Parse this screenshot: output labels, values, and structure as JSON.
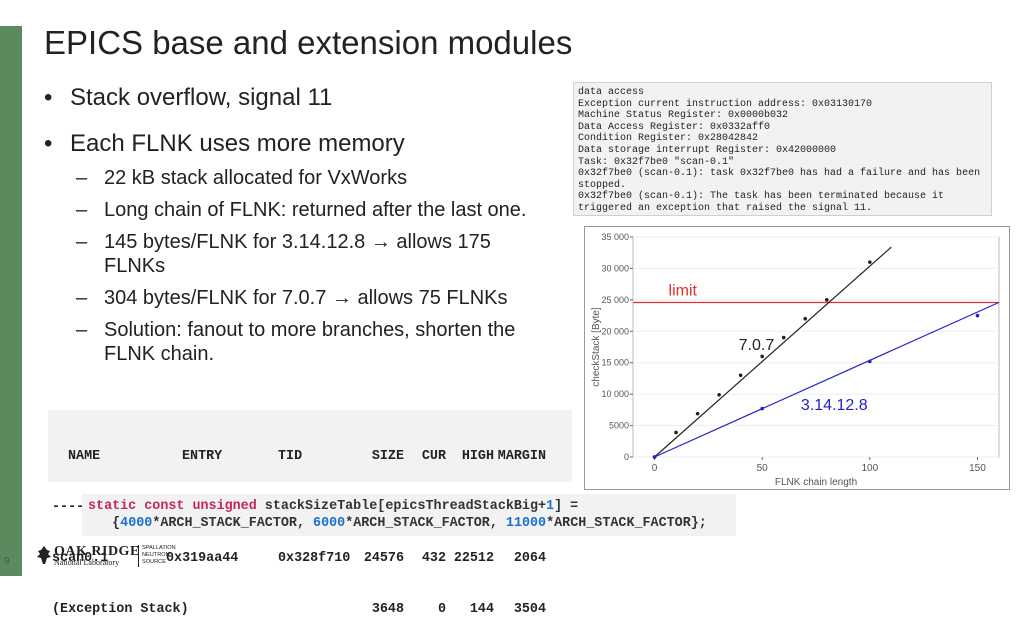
{
  "slide": {
    "title": "EPICS base and extension modules",
    "page_number": "9",
    "bullets": [
      {
        "text": "Stack overflow, signal 11"
      },
      {
        "text": "Each FLNK uses more memory"
      }
    ],
    "sub_bullets": [
      "22 kB stack allocated for VxWorks",
      "Long chain of FLNK: returned after the last one.",
      "145 bytes/FLNK for 3.14.12.8 → allows 175 FLNKs",
      "304 bytes/FLNK for 7.0.7 → allows 75 FLNKs",
      "Solution: fanout to more branches, shorten the FLNK chain."
    ]
  },
  "log": {
    "lines": [
      "data access",
      "Exception current instruction address: 0x03130170",
      "Machine Status Register: 0x0000b032",
      "Data Access Register: 0x0332aff0",
      "Condition Register: 0x28042842",
      "Data storage interrupt Register: 0x42000000",
      "Task: 0x32f7be0 \"scan-0.1\"",
      "0x32f7be0 (scan-0.1): task 0x32f7be0 has had a failure and has been",
      "stopped.",
      "0x32f7be0 (scan-0.1): The task has been terminated because it",
      "triggered an exception that raised the signal 11."
    ]
  },
  "stack_table": {
    "headers": [
      "NAME",
      "ENTRY",
      "TID",
      "SIZE",
      "CUR",
      "HIGH",
      "MARGIN"
    ],
    "separator": "------------ ------------ ---------- ----- ----- ----- ------",
    "rows": [
      [
        "scan0.1",
        "0x319aa44",
        "0x328f710",
        "24576",
        "432",
        "22512",
        "2064"
      ],
      [
        "(Exception Stack)",
        "",
        "",
        "3648",
        "0",
        "144",
        "3504"
      ]
    ]
  },
  "code": {
    "kw": "static const unsigned",
    "decl": " stackSizeTable[epicsThreadStackBig+",
    "one": "1",
    "decl_end": "] =",
    "open": "{",
    "n1": "4000",
    "f1": "*ARCH_STACK_FACTOR, ",
    "n2": "6000",
    "f2": "*ARCH_STACK_FACTOR, ",
    "n3": "11000",
    "f3": "*ARCH_STACK_FACTOR};"
  },
  "footer": {
    "logo_main": "OAK RIDGE",
    "logo_sub": "National Laboratory",
    "logo_side": [
      "SPALLATION",
      "NEUTRON",
      "SOURCE"
    ]
  },
  "chart_data": {
    "type": "line",
    "xlabel": "FLNK chain length",
    "ylabel": "checkStack [Byte]",
    "xlim": [
      -10,
      160
    ],
    "ylim": [
      0,
      35000
    ],
    "x_ticks": [
      0,
      50,
      100,
      150
    ],
    "y_ticks": [
      0,
      5000,
      10000,
      15000,
      20000,
      25000,
      30000,
      35000
    ],
    "y_tick_labels": [
      "0",
      "5000",
      "10 000",
      "15 000",
      "20 000",
      "25 000",
      "30 000",
      "35 000"
    ],
    "limit": {
      "value": 24576,
      "label": "limit",
      "color": "#e03030"
    },
    "series": [
      {
        "name": "7.0.7",
        "color": "#222222",
        "points": [
          [
            0,
            0
          ],
          [
            10,
            3900
          ],
          [
            20,
            6900
          ],
          [
            30,
            9900
          ],
          [
            40,
            13000
          ],
          [
            50,
            16000
          ],
          [
            60,
            19000
          ],
          [
            70,
            22000
          ],
          [
            80,
            25000
          ],
          [
            100,
            31000
          ]
        ],
        "line": [
          [
            0,
            0
          ],
          [
            110,
            33400
          ]
        ]
      },
      {
        "name": "3.14.12.8",
        "color": "#2222cc",
        "points": [
          [
            0,
            0
          ],
          [
            50,
            7700
          ],
          [
            100,
            15200
          ],
          [
            150,
            22500
          ]
        ],
        "line": [
          [
            0,
            0
          ],
          [
            160,
            24600
          ]
        ]
      }
    ]
  }
}
